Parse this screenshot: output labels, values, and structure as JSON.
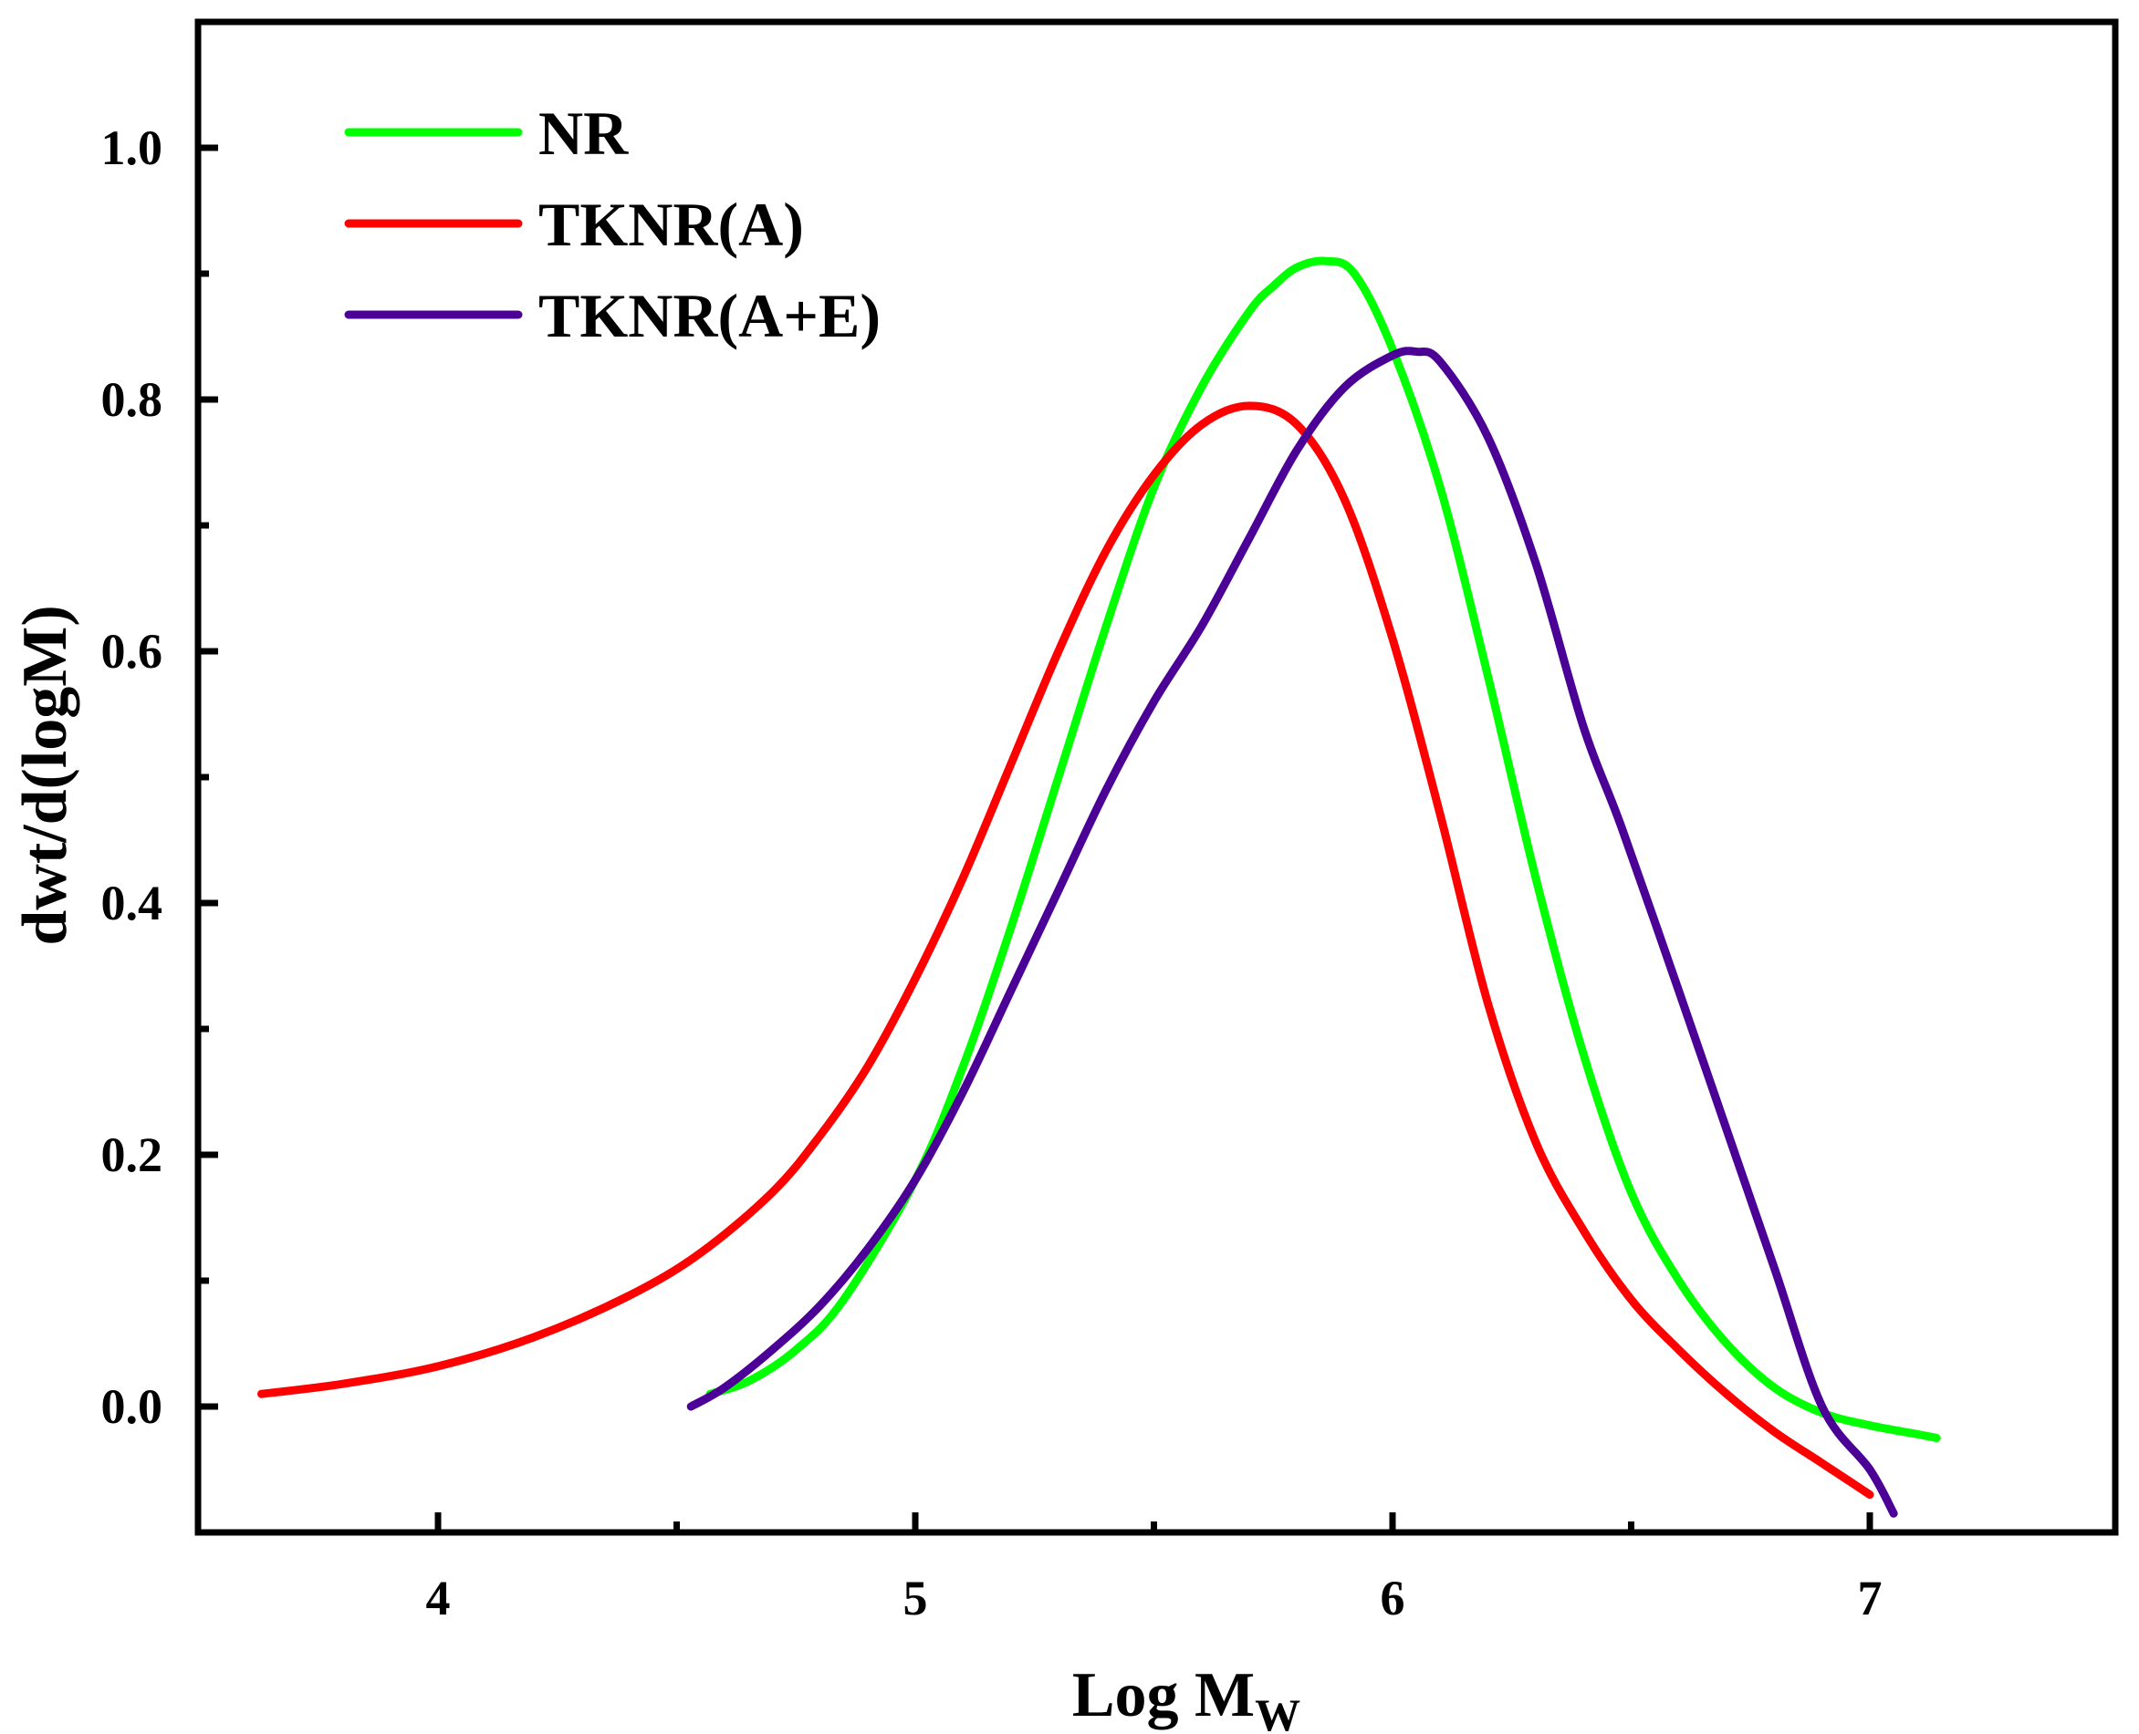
{
  "chart_data": {
    "type": "line",
    "title": "",
    "xlabel": "Log M",
    "xlabel_subscript": "W",
    "ylabel": "dwt/d(logM)",
    "xlim": [
      3.5,
      7.5
    ],
    "ylim": [
      -0.1,
      1.1
    ],
    "xticks": [
      4,
      5,
      6,
      7
    ],
    "xtick_labels": [
      "4",
      "5",
      "6",
      "7"
    ],
    "yticks": [
      0.0,
      0.2,
      0.4,
      0.6,
      0.8,
      1.0
    ],
    "ytick_labels": [
      "0.0",
      "0.2",
      "0.4",
      "0.6",
      "0.8",
      "1.0"
    ],
    "grid": false,
    "legend_position": "top-left",
    "series": [
      {
        "name": "NR",
        "color": "#00ff00",
        "x": [
          4.57,
          4.65,
          4.75,
          4.85,
          5.0,
          5.1,
          5.2,
          5.3,
          5.4,
          5.5,
          5.6,
          5.7,
          5.75,
          5.8,
          5.86,
          5.92,
          6.0,
          6.1,
          6.2,
          6.3,
          6.4,
          6.5,
          6.6,
          6.7,
          6.8,
          6.9,
          7.0,
          7.1,
          7.14
        ],
        "y": [
          0.01,
          0.02,
          0.045,
          0.085,
          0.18,
          0.27,
          0.38,
          0.5,
          0.62,
          0.73,
          0.81,
          0.87,
          0.89,
          0.905,
          0.91,
          0.9,
          0.84,
          0.73,
          0.58,
          0.42,
          0.28,
          0.17,
          0.1,
          0.05,
          0.015,
          -0.005,
          -0.015,
          -0.022,
          -0.025
        ]
      },
      {
        "name": "TKNR(A)",
        "color": "#ff0000",
        "x": [
          3.63,
          3.8,
          4.0,
          4.2,
          4.4,
          4.55,
          4.7,
          4.8,
          4.9,
          5.0,
          5.1,
          5.2,
          5.3,
          5.4,
          5.5,
          5.6,
          5.7,
          5.8,
          5.9,
          6.0,
          6.1,
          6.2,
          6.3,
          6.4,
          6.5,
          6.6,
          6.7,
          6.8,
          6.9,
          7.0
        ],
        "y": [
          0.01,
          0.018,
          0.032,
          0.055,
          0.088,
          0.122,
          0.17,
          0.215,
          0.27,
          0.34,
          0.42,
          0.51,
          0.6,
          0.68,
          0.74,
          0.78,
          0.795,
          0.78,
          0.72,
          0.61,
          0.47,
          0.32,
          0.21,
          0.14,
          0.085,
          0.045,
          0.01,
          -0.02,
          -0.045,
          -0.07
        ]
      },
      {
        "name": "TKNR(A+E)",
        "color": "#4b0096",
        "x": [
          4.53,
          4.6,
          4.7,
          4.8,
          4.9,
          5.0,
          5.1,
          5.2,
          5.3,
          5.4,
          5.5,
          5.6,
          5.7,
          5.8,
          5.9,
          6.0,
          6.05,
          6.1,
          6.2,
          6.3,
          6.4,
          6.48,
          6.6,
          6.7,
          6.8,
          6.9,
          7.0,
          7.05
        ],
        "y": [
          0.0,
          0.015,
          0.045,
          0.08,
          0.125,
          0.18,
          0.25,
          0.33,
          0.41,
          0.49,
          0.56,
          0.62,
          0.69,
          0.76,
          0.81,
          0.835,
          0.838,
          0.83,
          0.77,
          0.67,
          0.54,
          0.46,
          0.33,
          0.22,
          0.11,
          0.0,
          -0.05,
          -0.085
        ]
      }
    ]
  }
}
